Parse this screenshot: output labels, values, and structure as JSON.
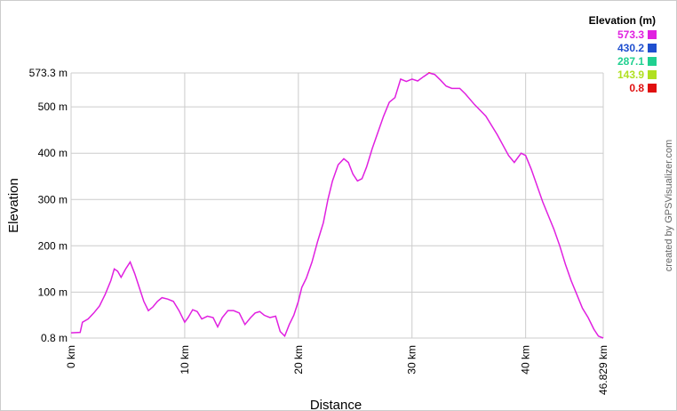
{
  "chart_data": {
    "type": "line",
    "x_label": "Distance",
    "y_label": "Elevation",
    "x": [
      0,
      0.8,
      1,
      1.5,
      2,
      2.5,
      3,
      3.5,
      3.8,
      4.1,
      4.4,
      4.8,
      5.2,
      5.6,
      6,
      6.4,
      6.8,
      7.2,
      7.6,
      8,
      8.5,
      9,
      9.5,
      10,
      10.3,
      10.7,
      11.1,
      11.5,
      12,
      12.5,
      12.9,
      13.3,
      13.8,
      14.3,
      14.8,
      15.3,
      15.8,
      16.2,
      16.6,
      17,
      17.5,
      18,
      18.4,
      18.8,
      19.2,
      19.6,
      20,
      20.3,
      20.7,
      21.2,
      21.7,
      22.2,
      22.6,
      23,
      23.5,
      24,
      24.4,
      24.8,
      25.2,
      25.6,
      26,
      26.5,
      27,
      27.5,
      28,
      28.5,
      29,
      29.5,
      30,
      30.5,
      31,
      31.5,
      32,
      32.5,
      33,
      33.5,
      34.2,
      34.7,
      35.5,
      36.5,
      37.5,
      38.5,
      39,
      39.6,
      40,
      40.5,
      41,
      41.5,
      42,
      42.5,
      43,
      43.5,
      44,
      44.5,
      45,
      45.5,
      46,
      46.4,
      46.829
    ],
    "values": [
      12,
      13,
      35,
      42,
      55,
      70,
      95,
      125,
      150,
      145,
      132,
      150,
      165,
      140,
      110,
      80,
      60,
      68,
      80,
      88,
      85,
      80,
      60,
      35,
      45,
      62,
      58,
      42,
      48,
      45,
      25,
      45,
      60,
      60,
      55,
      30,
      45,
      55,
      58,
      50,
      45,
      48,
      15,
      5,
      30,
      50,
      80,
      110,
      130,
      165,
      210,
      250,
      300,
      340,
      375,
      388,
      380,
      355,
      340,
      345,
      370,
      410,
      445,
      480,
      510,
      520,
      560,
      555,
      560,
      556,
      565,
      573.3,
      570,
      558,
      545,
      540,
      540,
      528,
      505,
      480,
      440,
      395,
      380,
      400,
      395,
      365,
      330,
      295,
      265,
      235,
      200,
      160,
      125,
      95,
      65,
      45,
      20,
      5,
      0.8
    ],
    "xlim": [
      0,
      46.829
    ],
    "ylim": [
      0.8,
      573.3
    ],
    "xticks": [
      {
        "value": 0,
        "label": "0 km"
      },
      {
        "value": 10,
        "label": "10 km"
      },
      {
        "value": 20,
        "label": "20 km"
      },
      {
        "value": 30,
        "label": "30 km"
      },
      {
        "value": 40,
        "label": "40 km"
      },
      {
        "value": 46.829,
        "label": "46.829 km"
      }
    ],
    "yticks": [
      {
        "value": 0.8,
        "label": "0.8 m"
      },
      {
        "value": 100,
        "label": "100 m"
      },
      {
        "value": 200,
        "label": "200 m"
      },
      {
        "value": 300,
        "label": "300 m"
      },
      {
        "value": 400,
        "label": "400 m"
      },
      {
        "value": 500,
        "label": "500 m"
      },
      {
        "value": 573.3,
        "label": "573.3 m"
      }
    ],
    "grid": true,
    "legend": {
      "title": "Elevation (m)",
      "values": [
        573.3,
        430.2,
        287.1,
        143.9,
        0.8
      ],
      "colors": [
        "#e020e0",
        "#1f4fcf",
        "#20d090",
        "#b0e020",
        "#e01010"
      ]
    },
    "credit": "created by GPSVisualizer.com"
  }
}
